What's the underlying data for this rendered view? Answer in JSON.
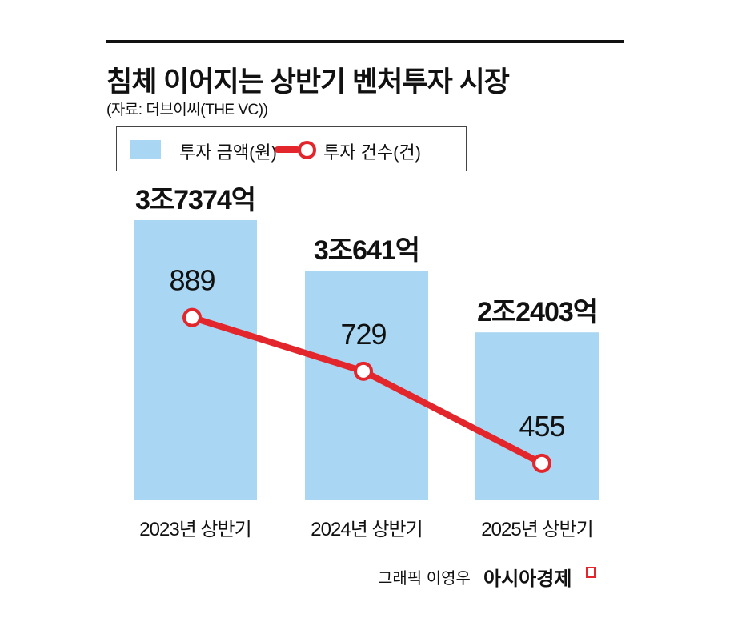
{
  "header": {
    "title": "침체 이어지는 상반기 벤처투자 시장",
    "source": "(자료: 더브이씨(THE VC))"
  },
  "credit": {
    "graphic": "그래픽 이영우",
    "brand": "아시아경제"
  },
  "chart_data": {
    "type": "bar+line",
    "title": "침체 이어지는 상반기 벤처투자 시장",
    "categories": [
      "2023년 상반기",
      "2024년 상반기",
      "2025년 상반기"
    ],
    "legend_position": "top-left",
    "series": [
      {
        "name": "투자 금액(원)",
        "type": "bar",
        "values": [
          37374,
          30641,
          22403
        ],
        "unit": "억",
        "labels": [
          "3조7374억",
          "3조641억",
          "2조2403억"
        ],
        "color": "#a9d6f2"
      },
      {
        "name": "투자 건수(건)",
        "type": "line",
        "values": [
          889,
          729,
          455
        ],
        "labels": [
          "889",
          "729",
          "455"
        ],
        "color": "#e3262b"
      }
    ],
    "grid": false
  }
}
